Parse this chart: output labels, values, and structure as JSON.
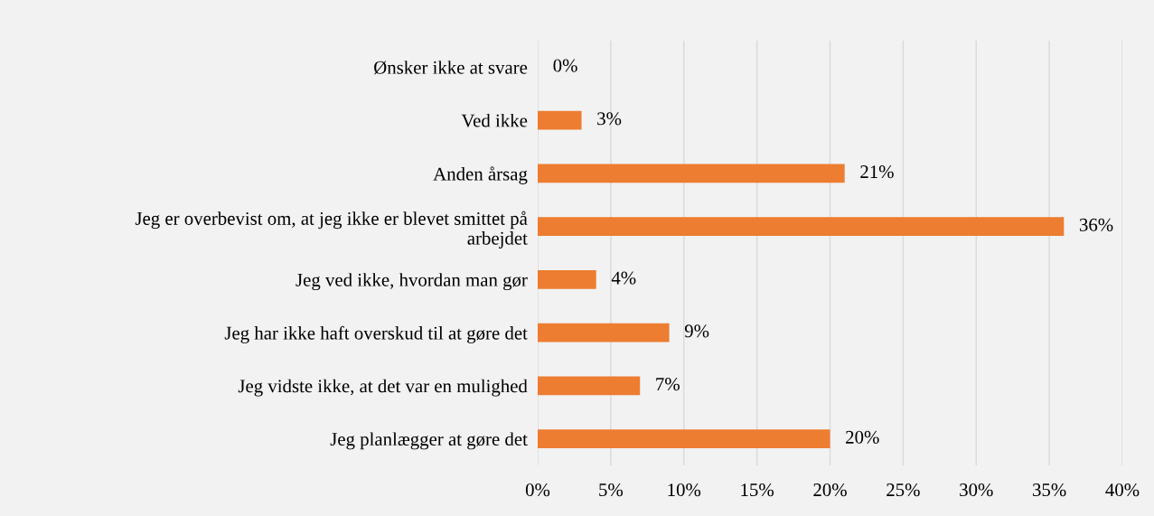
{
  "chart_data": {
    "type": "bar",
    "orientation": "horizontal",
    "categories": [
      "Ønsker ikke at svare",
      "Ved ikke",
      "Anden årsag",
      "Jeg er overbevist om, at jeg ikke er blevet smittet på\narbejdet",
      "Jeg ved ikke, hvordan man gør",
      "Jeg har ikke haft overskud til at gøre det",
      "Jeg vidste ikke, at det var en mulighed",
      "Jeg planlægger at gøre det"
    ],
    "values": [
      0,
      3,
      21,
      36,
      4,
      9,
      7,
      20
    ],
    "value_labels": [
      "0%",
      "3%",
      "21%",
      "36%",
      "4%",
      "9%",
      "7%",
      "20%"
    ],
    "color": "#ed7d31",
    "xlim": [
      0,
      40
    ],
    "xticks": [
      {
        "value": 0,
        "label": "0%"
      },
      {
        "value": 5,
        "label": "5%"
      },
      {
        "value": 10,
        "label": "10%"
      },
      {
        "value": 15,
        "label": "15%"
      },
      {
        "value": 20,
        "label": "20%"
      },
      {
        "value": 25,
        "label": "25%"
      },
      {
        "value": 30,
        "label": "30%"
      },
      {
        "value": 35,
        "label": "35%"
      },
      {
        "value": 40,
        "label": "40%"
      }
    ],
    "grid": "x",
    "legend": false
  }
}
